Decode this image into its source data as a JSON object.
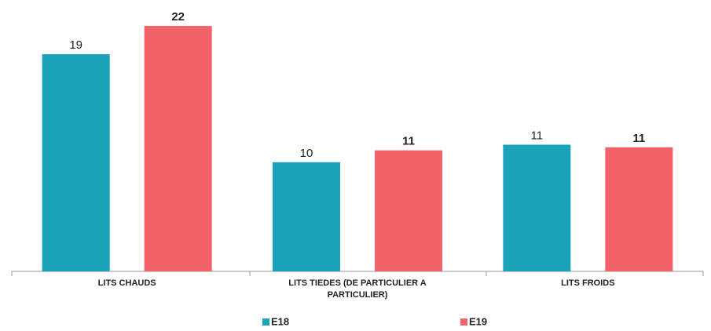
{
  "chart_data": {
    "type": "bar",
    "categories": [
      "LITS CHAUDS",
      "LITS TIEDES (DE PARTICULIER A PARTICULIER)",
      "LITS FROIDS"
    ],
    "series": [
      {
        "name": "E18",
        "color": "#1ba3bb",
        "values": [
          19.2,
          9.65,
          11.2
        ],
        "value_labels": [
          "19",
          "10",
          "11"
        ]
      },
      {
        "name": "E19",
        "color": "#f2626a",
        "values": [
          21.7,
          10.7,
          10.97
        ],
        "value_labels": [
          "22",
          "11",
          "11"
        ]
      }
    ],
    "ylim": [
      0,
      23.3
    ],
    "grid": false,
    "legend": "bottom"
  }
}
